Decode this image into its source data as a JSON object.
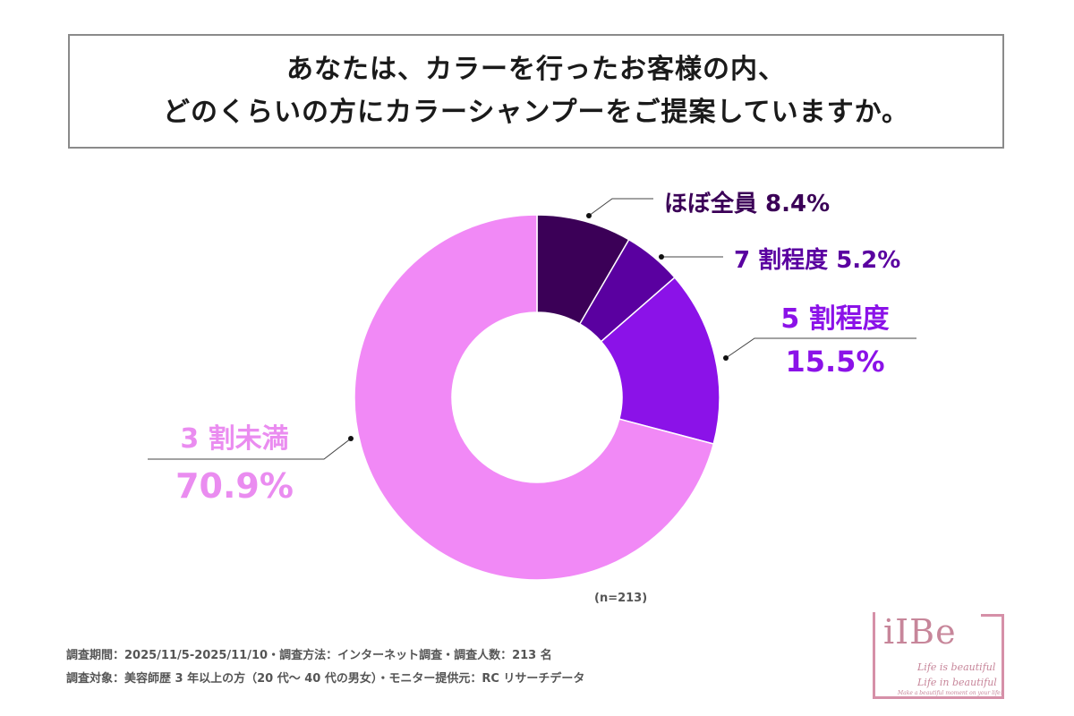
{
  "header": {
    "title_line1": "あなたは、カラーを行ったお客様の内、",
    "title_line2": "どのくらいの方にカラーシャンプーをご提案していますか。"
  },
  "chart_data": {
    "type": "pie",
    "categories": [
      "ほぼ全員",
      "7 割程度",
      "5 割程度",
      "3 割未満"
    ],
    "values": [
      8.4,
      5.2,
      15.5,
      70.9
    ],
    "value_labels": [
      "8.4%",
      "5.2%",
      "15.5%",
      "70.9%"
    ],
    "colors": [
      "#3b0057",
      "#5a00a0",
      "#8b12e8",
      "#f189f6"
    ],
    "label_colors": [
      "#3b0057",
      "#5a00a0",
      "#8b12e8",
      "#ea8cf0"
    ],
    "style": "donut",
    "sample": "(n=213)"
  },
  "footer": {
    "line1": "調査期間：2025/11/5-2025/11/10・調査方法：インターネット調査・調査人数：213 名",
    "line2": "調査対象：美容師歴 3 年以上の方（20 代～ 40 代の男女）・モニター提供元：RC リサーチデータ"
  },
  "logo": {
    "word": "iIBe",
    "tag1": "Life is beautiful",
    "tag2": "Life in beautiful",
    "small": "Make a beautiful moment on your life!",
    "color": "#c7869a"
  }
}
